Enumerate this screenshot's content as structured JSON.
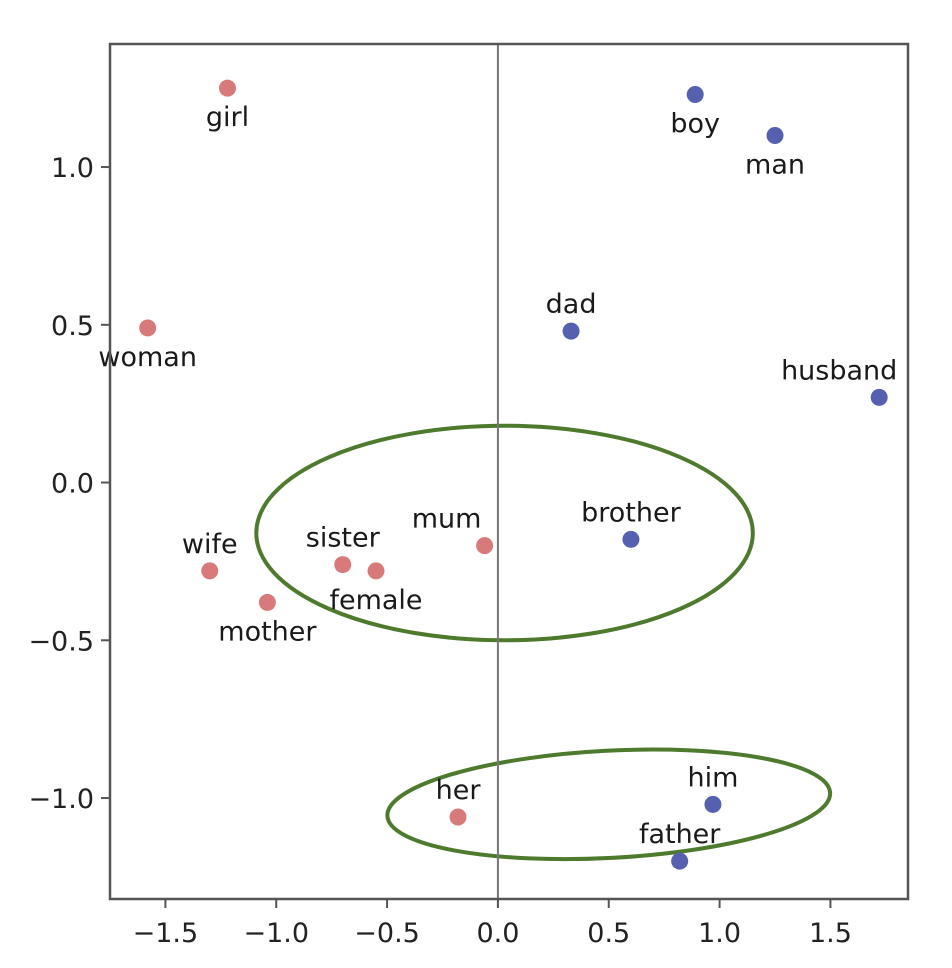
{
  "chart_data": {
    "type": "scatter",
    "title": "",
    "xlabel": "",
    "ylabel": "",
    "xlim": [
      -1.75,
      1.85
    ],
    "ylim": [
      -1.32,
      1.39
    ],
    "x_ticks": [
      -1.5,
      -1.0,
      -0.5,
      0.0,
      0.5,
      1.0,
      1.5
    ],
    "x_tick_labels": [
      "−1.5",
      "−1.0",
      "−0.5",
      "0.0",
      "0.5",
      "1.0",
      "1.5"
    ],
    "y_ticks": [
      1.0,
      0.5,
      0.0,
      -0.5,
      -1.0
    ],
    "y_tick_labels": [
      "1.0",
      "0.5",
      "0.0",
      "−0.5",
      "−1.0"
    ],
    "grid": false,
    "legend": "none",
    "zero_line_x": 0.0,
    "series": [
      {
        "color": "#d97a7a",
        "points": [
          {
            "label": "girl",
            "x": -1.22,
            "y": 1.25,
            "label_pos": "below"
          },
          {
            "label": "woman",
            "x": -1.58,
            "y": 0.49,
            "label_pos": "below"
          },
          {
            "label": "wife",
            "x": -1.3,
            "y": -0.28,
            "label_pos": "above"
          },
          {
            "label": "mother",
            "x": -1.04,
            "y": -0.38,
            "label_pos": "below"
          },
          {
            "label": "sister",
            "x": -0.7,
            "y": -0.26,
            "label_pos": "above"
          },
          {
            "label": "female",
            "x": -0.55,
            "y": -0.28,
            "label_pos": "below"
          },
          {
            "label": "mum",
            "x": -0.06,
            "y": -0.2,
            "label_pos": "above-left"
          },
          {
            "label": "her",
            "x": -0.18,
            "y": -1.06,
            "label_pos": "above"
          }
        ]
      },
      {
        "color": "#5560b0",
        "points": [
          {
            "label": "boy",
            "x": 0.89,
            "y": 1.23,
            "label_pos": "below"
          },
          {
            "label": "man",
            "x": 1.25,
            "y": 1.1,
            "label_pos": "below"
          },
          {
            "label": "dad",
            "x": 0.33,
            "y": 0.48,
            "label_pos": "above"
          },
          {
            "label": "husband",
            "x": 1.72,
            "y": 0.27,
            "label_pos": "above-left"
          },
          {
            "label": "brother",
            "x": 0.6,
            "y": -0.18,
            "label_pos": "above"
          },
          {
            "label": "him",
            "x": 0.97,
            "y": -1.02,
            "label_pos": "above"
          },
          {
            "label": "father",
            "x": 0.82,
            "y": -1.2,
            "label_pos": "above"
          }
        ]
      }
    ],
    "annotations": [
      {
        "type": "ellipse",
        "cx": 0.03,
        "cy": -0.16,
        "rx": 1.12,
        "ry": 0.34,
        "color": "#4e7a2e"
      },
      {
        "type": "ellipse",
        "cx": 0.5,
        "cy": -1.02,
        "rx": 1.0,
        "ry": 0.17,
        "rotate_deg": -3,
        "color": "#4e7a2e"
      }
    ],
    "colors": {
      "axes": "#555555",
      "zero_line": "#777777",
      "text": "#222222"
    }
  }
}
